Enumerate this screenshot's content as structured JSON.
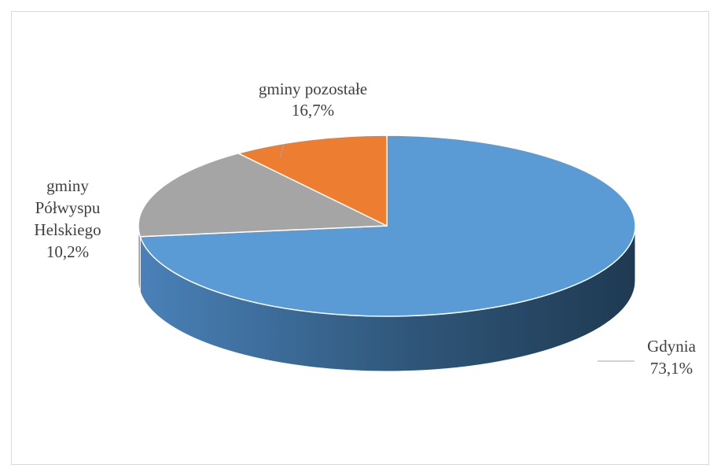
{
  "chart_data": {
    "type": "pie",
    "style": "3d",
    "title": "",
    "legend": "none",
    "slices": [
      {
        "name": "Gdynia",
        "value": 73.1,
        "label": "73,1%",
        "color": "#5b9bd5",
        "side_color": "#41719c"
      },
      {
        "name": "gminy pozostałe",
        "value": 16.7,
        "label": "16,7%",
        "color": "#a5a5a5",
        "side_color": "#7c7c7c"
      },
      {
        "name": "gminy Półwyspu Helskiego",
        "value": 10.2,
        "label": "10,2%",
        "color": "#ed7d31",
        "side_color": "#ae5a21"
      }
    ],
    "data_labels": [
      {
        "lines": [
          "Gdynia",
          "73,1%"
        ]
      },
      {
        "lines": [
          "gminy pozostałe",
          "16,7%"
        ]
      },
      {
        "lines": [
          "gminy",
          "Półwyspu",
          "Helskiego",
          "10,2%"
        ]
      }
    ]
  }
}
